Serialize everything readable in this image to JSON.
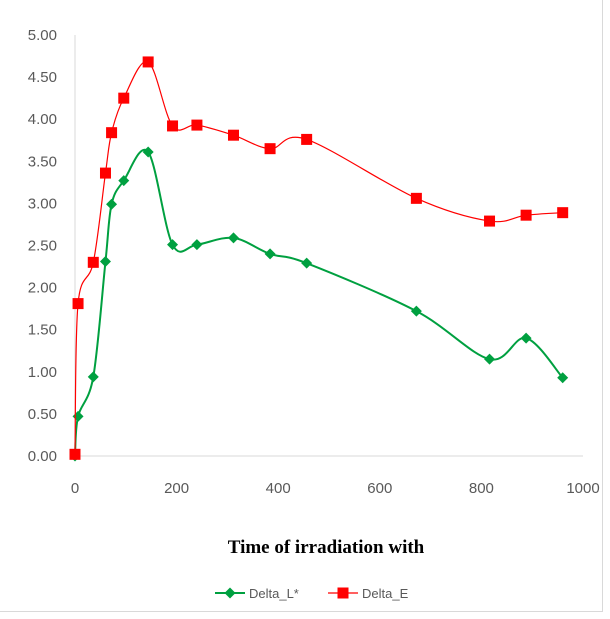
{
  "chart_data": {
    "type": "line",
    "title": "",
    "xlabel": "Time of irradiation with",
    "ylabel": "",
    "xlim": [
      0,
      1000
    ],
    "ylim": [
      0,
      5
    ],
    "xticks": [
      0,
      200,
      400,
      600,
      800,
      1000
    ],
    "yticks": [
      0,
      0.5,
      1,
      1.5,
      2,
      2.5,
      3,
      3.5,
      4,
      4.5,
      5
    ],
    "xtick_labels": [
      "0",
      "200",
      "400",
      "600",
      "800",
      "1000"
    ],
    "ytick_labels": [
      "0.00",
      "0.50",
      "1.00",
      "1.50",
      "2.00",
      "2.50",
      "3.00",
      "3.50",
      "4.00",
      "4.50",
      "5.00"
    ],
    "grid": false,
    "legend_position": "bottom",
    "smooth": true,
    "series": [
      {
        "name": "Delta_L*",
        "color": "#00a040",
        "marker": "diamond",
        "x": [
          0,
          6,
          36,
          60,
          72,
          96,
          144,
          192,
          240,
          312,
          384,
          456,
          672,
          816,
          888,
          960
        ],
        "y": [
          0.0,
          0.47,
          0.94,
          2.31,
          2.99,
          3.27,
          3.61,
          2.51,
          2.51,
          2.59,
          2.4,
          2.29,
          1.72,
          1.15,
          1.4,
          0.93
        ]
      },
      {
        "name": "Delta_E",
        "color": "#ff0000",
        "marker": "square",
        "x": [
          0,
          6,
          36,
          60,
          72,
          96,
          144,
          192,
          240,
          312,
          384,
          456,
          672,
          816,
          888,
          960
        ],
        "y": [
          0.02,
          1.81,
          2.3,
          3.36,
          3.84,
          4.25,
          4.68,
          3.92,
          3.93,
          3.81,
          3.65,
          3.76,
          3.06,
          2.79,
          2.86,
          2.89
        ]
      }
    ]
  }
}
